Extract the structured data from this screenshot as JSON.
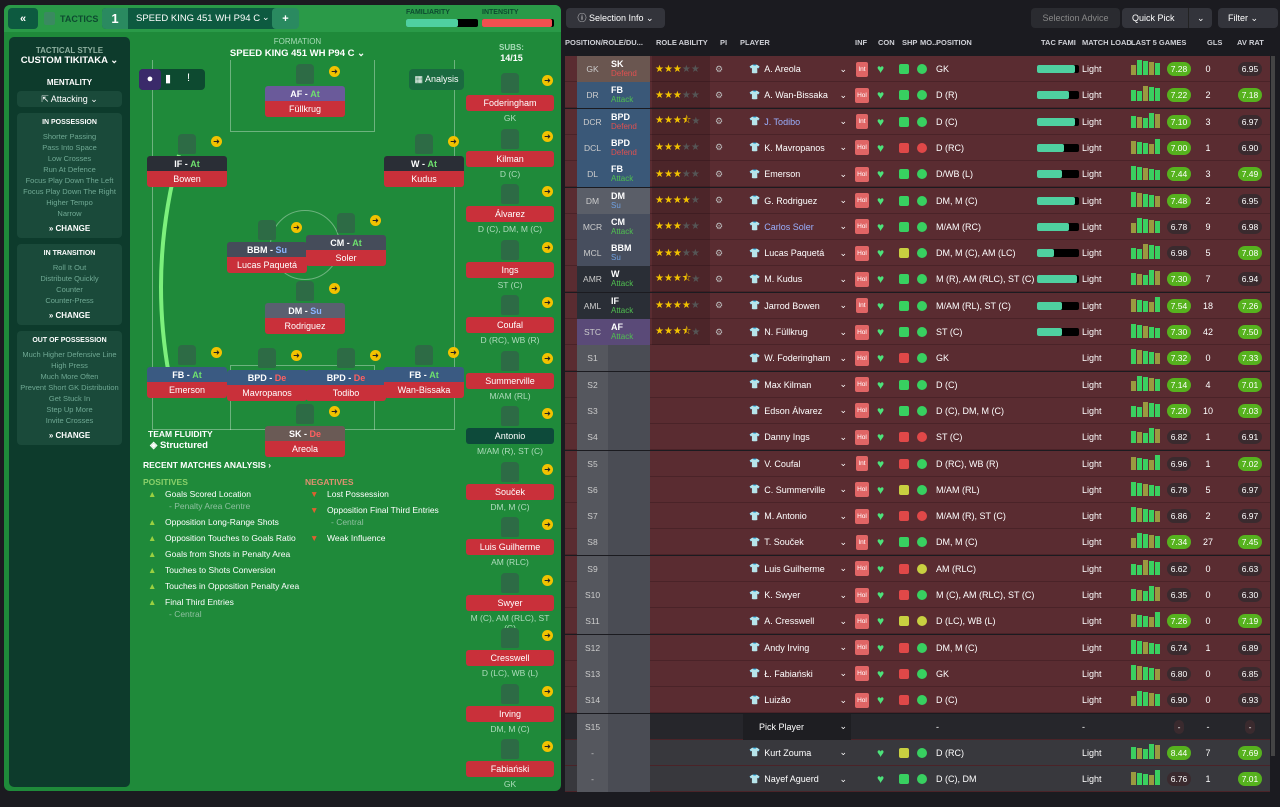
{
  "header": {
    "back": "«",
    "tactics": "TACTICS",
    "slot": "1",
    "tactic_name": "SPEED KING 451 WH P94 C",
    "add": "+",
    "familiarity_label": "FAMILIARITY",
    "familiarity": 0.72,
    "intensity_label": "INTENSITY",
    "intensity": 0.97
  },
  "sidebar": {
    "style_label": "TACTICAL STYLE",
    "style": "CUSTOM TIKITAKA",
    "mentality_label": "MENTALITY",
    "mentality": "Attacking",
    "groups": [
      {
        "title": "IN POSSESSION",
        "items": [
          "Shorter Passing",
          "Pass Into Space",
          "Low Crosses",
          "Run At Defence",
          "Focus Play Down The Left",
          "Focus Play Down The Right",
          "Higher Tempo",
          "Narrow"
        ],
        "change": "CHANGE"
      },
      {
        "title": "IN TRANSITION",
        "items": [
          "Roll It Out",
          "Distribute Quickly",
          "Counter",
          "Counter-Press"
        ],
        "change": "CHANGE"
      },
      {
        "title": "OUT OF POSSESSION",
        "items": [
          "Much Higher Defensive Line",
          "High Press",
          "Much More Often",
          "Prevent Short GK Distribution",
          "Get Stuck In",
          "Step Up More",
          "Invite Crosses"
        ],
        "change": "CHANGE"
      }
    ]
  },
  "pitch": {
    "formation_label": "FORMATION",
    "formation": "SPEED KING 451 WH P94 C",
    "subs_label": "SUBS:",
    "subs": "14/15",
    "analysis": "Analysis",
    "fluidity_label": "TEAM FLUIDITY",
    "fluidity": "Structured",
    "players": [
      {
        "role": "AF",
        "duty": "At",
        "name": "Füllkrug",
        "color": "#6a5a9a"
      },
      {
        "role": "IF",
        "duty": "At",
        "name": "Bowen",
        "color": "#2a2e36"
      },
      {
        "role": "W",
        "duty": "At",
        "name": "Kudus",
        "color": "#2a2e36"
      },
      {
        "role": "BBM",
        "duty": "Su",
        "name": "Lucas Paquetá",
        "color": "#454c5a"
      },
      {
        "role": "CM",
        "duty": "At",
        "name": "Soler",
        "color": "#454c5a"
      },
      {
        "role": "DM",
        "duty": "Su",
        "name": "Rodriguez",
        "color": "#5a6070"
      },
      {
        "role": "FB",
        "duty": "At",
        "name": "Emerson",
        "color": "#3a5a82"
      },
      {
        "role": "BPD",
        "duty": "De",
        "name": "Mavropanos",
        "color": "#3a5a82"
      },
      {
        "role": "BPD",
        "duty": "De",
        "name": "Todibo",
        "color": "#3a5a82"
      },
      {
        "role": "FB",
        "duty": "At",
        "name": "Wan-Bissaka",
        "color": "#3a5a82"
      },
      {
        "role": "SK",
        "duty": "De",
        "name": "Areola",
        "color": "#6a5a55"
      }
    ],
    "subs_list": [
      {
        "name": "Foderingham",
        "pos": "GK"
      },
      {
        "name": "Kilman",
        "pos": "D (C)"
      },
      {
        "name": "Álvarez",
        "pos": "D (C), DM, M (C)"
      },
      {
        "name": "Ings",
        "pos": "ST (C)"
      },
      {
        "name": "Coufal",
        "pos": "D (RC), WB (R)"
      },
      {
        "name": "Summerville",
        "pos": "M/AM (RL)"
      },
      {
        "name": "Antonio",
        "pos": "M/AM (R), ST (C)"
      },
      {
        "name": "Souček",
        "pos": "DM, M (C)"
      },
      {
        "name": "Luis Guilherme",
        "pos": "AM (RLC)"
      },
      {
        "name": "Swyer",
        "pos": "M (C), AM (RLC), ST (C)"
      },
      {
        "name": "Cresswell",
        "pos": "D (LC), WB (L)"
      },
      {
        "name": "Irving",
        "pos": "DM, M (C)"
      },
      {
        "name": "Fabiański",
        "pos": "GK"
      }
    ]
  },
  "analysis": {
    "title": "RECENT MATCHES ANALYSIS ›",
    "positives_label": "POSITIVES",
    "negatives_label": "NEGATIVES",
    "positives": [
      {
        "t": "Goals Scored Location",
        "s": "- Penalty Area Centre"
      },
      {
        "t": "Opposition Long-Range Shots",
        "s": ""
      },
      {
        "t": "Opposition Touches to Goals Ratio",
        "s": ""
      },
      {
        "t": "Goals from Shots in Penalty Area",
        "s": ""
      },
      {
        "t": "Touches to Shots Conversion",
        "s": ""
      },
      {
        "t": "Touches in Opposition Penalty Area",
        "s": ""
      },
      {
        "t": "Final Third Entries",
        "s": "- Central"
      }
    ],
    "negatives": [
      {
        "t": "Lost Possession",
        "s": ""
      },
      {
        "t": "Opposition Final Third Entries",
        "s": "- Central"
      },
      {
        "t": "Weak Influence",
        "s": ""
      }
    ]
  },
  "toolbar": {
    "selection_info": "Selection Info",
    "selection_advice": "Selection Advice",
    "quick_pick": "Quick Pick",
    "filter": "Filter"
  },
  "table": {
    "columns": [
      "POSITION/ROLE/DU...",
      "ROLE ABILITY",
      "PI",
      "PLAYER",
      "INF",
      "CON",
      "SHP",
      "MO...",
      "POSITION",
      "TAC FAMI",
      "MATCH LOAD",
      "LAST 5 GAMES",
      "GLS",
      "AV RAT"
    ],
    "rows": [
      {
        "pos": "GK",
        "role": "SK",
        "duty": "Defend",
        "stars": 3,
        "player": "A. Areola",
        "inf": "Int",
        "shp": "g",
        "mo": "g",
        "position": "GK",
        "tf": 0.9,
        "load": "Light",
        "last5": "7.28",
        "gls": "0",
        "av": "6.95"
      },
      {
        "pos": "DR",
        "role": "FB",
        "duty": "Attack",
        "stars": 3,
        "player": "A. Wan-Bissaka",
        "inf": "Hol",
        "shp": "g",
        "mo": "g",
        "position": "D (R)",
        "tf": 0.75,
        "load": "Light",
        "last5": "7.22",
        "gls": "2",
        "av": "7.18"
      },
      {
        "pos": "DCR",
        "role": "BPD",
        "duty": "Defend",
        "stars": 3.5,
        "player": "J. Todibo",
        "inf": "Int",
        "shp": "g",
        "mo": "g",
        "position": "D (C)",
        "tf": 0.9,
        "load": "Light",
        "last5": "7.10",
        "gls": "3",
        "av": "6.97"
      },
      {
        "pos": "DCL",
        "role": "BPD",
        "duty": "Defend",
        "stars": 3,
        "player": "K. Mavropanos",
        "inf": "Hol",
        "shp": "r",
        "mo": "r",
        "position": "D (RC)",
        "tf": 0.65,
        "load": "Light",
        "last5": "7.00",
        "gls": "1",
        "av": "6.90"
      },
      {
        "pos": "DL",
        "role": "FB",
        "duty": "Attack",
        "stars": 3,
        "player": "Emerson",
        "inf": "Hol",
        "shp": "g",
        "mo": "g",
        "position": "D/WB (L)",
        "tf": 0.6,
        "load": "Light",
        "last5": "7.44",
        "gls": "3",
        "av": "7.49"
      },
      {
        "pos": "DM",
        "role": "DM",
        "duty": "Su",
        "stars": 4,
        "player": "G. Rodriguez",
        "inf": "Hol",
        "shp": "g",
        "mo": "g",
        "position": "DM, M (C)",
        "tf": 0.9,
        "load": "Light",
        "last5": "7.48",
        "gls": "2",
        "av": "6.95"
      },
      {
        "pos": "MCR",
        "role": "CM",
        "duty": "Attack",
        "stars": 3,
        "player": "Carlos Soler",
        "inf": "Hol",
        "shp": "g",
        "mo": "g",
        "position": "M/AM (RC)",
        "tf": 0.75,
        "load": "Light",
        "last5": "6.78",
        "gls": "9",
        "av": "6.98"
      },
      {
        "pos": "MCL",
        "role": "BBM",
        "duty": "Su",
        "stars": 3,
        "player": "Lucas Paquetá",
        "inf": "Hol",
        "shp": "y",
        "mo": "g",
        "position": "DM, M (C), AM (LC)",
        "tf": 0.4,
        "load": "Light",
        "last5": "6.98",
        "gls": "5",
        "av": "7.08"
      },
      {
        "pos": "AMR",
        "role": "W",
        "duty": "Attack",
        "stars": 3.5,
        "player": "M. Kudus",
        "inf": "Hol",
        "shp": "g",
        "mo": "g",
        "position": "M (R), AM (RLC), ST (C)",
        "tf": 0.95,
        "load": "Light",
        "last5": "7.30",
        "gls": "7",
        "av": "6.94"
      },
      {
        "pos": "AML",
        "role": "IF",
        "duty": "Attack",
        "stars": 4,
        "player": "Jarrod Bowen",
        "inf": "Int",
        "shp": "g",
        "mo": "g",
        "position": "M/AM (RL), ST (C)",
        "tf": 0.6,
        "load": "Light",
        "last5": "7.54",
        "gls": "18",
        "av": "7.26"
      },
      {
        "pos": "STC",
        "role": "AF",
        "duty": "Attack",
        "stars": 3.5,
        "player": "N. Füllkrug",
        "inf": "Hol",
        "shp": "g",
        "mo": "g",
        "position": "ST (C)",
        "tf": 0.6,
        "load": "Light",
        "last5": "7.30",
        "gls": "42",
        "av": "7.50"
      },
      {
        "pos": "S1",
        "player": "W. Foderingham",
        "inf": "Hol",
        "shp": "r",
        "mo": "g",
        "position": "GK",
        "load": "Light",
        "last5": "7.32",
        "gls": "0",
        "av": "7.33"
      },
      {
        "pos": "S2",
        "player": "Max Kilman",
        "inf": "Hol",
        "shp": "g",
        "mo": "g",
        "position": "D (C)",
        "load": "Light",
        "last5": "7.14",
        "gls": "4",
        "av": "7.01"
      },
      {
        "pos": "S3",
        "player": "Edson Álvarez",
        "inf": "Hol",
        "shp": "g",
        "mo": "g",
        "position": "D (C), DM, M (C)",
        "load": "Light",
        "last5": "7.20",
        "gls": "10",
        "av": "7.03"
      },
      {
        "pos": "S4",
        "player": "Danny Ings",
        "inf": "Hol",
        "shp": "r",
        "mo": "r",
        "position": "ST (C)",
        "load": "Light",
        "last5": "6.82",
        "gls": "1",
        "av": "6.91"
      },
      {
        "pos": "S5",
        "player": "V. Coufal",
        "inf": "Int",
        "shp": "r",
        "mo": "g",
        "position": "D (RC), WB (R)",
        "load": "Light",
        "last5": "6.96",
        "gls": "1",
        "av": "7.02"
      },
      {
        "pos": "S6",
        "player": "C. Summerville",
        "inf": "Hol",
        "shp": "y",
        "mo": "g",
        "position": "M/AM (RL)",
        "load": "Light",
        "last5": "6.78",
        "gls": "5",
        "av": "6.97"
      },
      {
        "pos": "S7",
        "player": "M. Antonio",
        "inf": "Hol",
        "shp": "r",
        "mo": "r",
        "position": "M/AM (R), ST (C)",
        "load": "Light",
        "last5": "6.86",
        "gls": "2",
        "av": "6.97"
      },
      {
        "pos": "S8",
        "player": "T. Souček",
        "inf": "Int",
        "shp": "g",
        "mo": "g",
        "position": "DM, M (C)",
        "load": "Light",
        "last5": "7.34",
        "gls": "27",
        "av": "7.45"
      },
      {
        "pos": "S9",
        "player": "Luis Guilherme",
        "inf": "Hol",
        "shp": "r",
        "mo": "y",
        "position": "AM (RLC)",
        "load": "Light",
        "last5": "6.62",
        "gls": "0",
        "av": "6.63"
      },
      {
        "pos": "S10",
        "player": "K. Swyer",
        "inf": "Hol",
        "shp": "r",
        "mo": "g",
        "position": "M (C), AM (RLC), ST (C)",
        "load": "Light",
        "last5": "6.35",
        "gls": "0",
        "av": "6.30"
      },
      {
        "pos": "S11",
        "player": "A. Cresswell",
        "inf": "Hol",
        "shp": "y",
        "mo": "y",
        "position": "D (LC), WB (L)",
        "load": "Light",
        "last5": "7.26",
        "gls": "0",
        "av": "7.19"
      },
      {
        "pos": "S12",
        "player": "Andy Irving",
        "inf": "Hol",
        "shp": "r",
        "mo": "g",
        "position": "DM, M (C)",
        "load": "Light",
        "last5": "6.74",
        "gls": "1",
        "av": "6.89"
      },
      {
        "pos": "S13",
        "player": "Ł. Fabiański",
        "inf": "Hol",
        "shp": "r",
        "mo": "g",
        "position": "GK",
        "load": "Light",
        "last5": "6.80",
        "gls": "0",
        "av": "6.85"
      },
      {
        "pos": "S14",
        "player": "Luizão",
        "inf": "Hol",
        "shp": "r",
        "mo": "g",
        "position": "D (C)",
        "load": "Light",
        "last5": "6.90",
        "gls": "0",
        "av": "6.93"
      },
      {
        "pos": "S15",
        "player": "Pick Player",
        "position": "-",
        "load": "-",
        "last5": "-",
        "gls": "-",
        "av": "-",
        "empty": true
      },
      {
        "pos": "-",
        "player": "Kurt Zouma",
        "shp": "y",
        "mo": "g",
        "position": "D (RC)",
        "load": "Light",
        "last5": "8.44",
        "gls": "7",
        "av": "7.69",
        "reserve": true
      },
      {
        "pos": "-",
        "player": "Nayef Aguerd",
        "shp": "g",
        "mo": "g",
        "position": "D (C), DM",
        "load": "Light",
        "last5": "6.76",
        "gls": "1",
        "av": "7.01",
        "reserve": true
      }
    ]
  }
}
